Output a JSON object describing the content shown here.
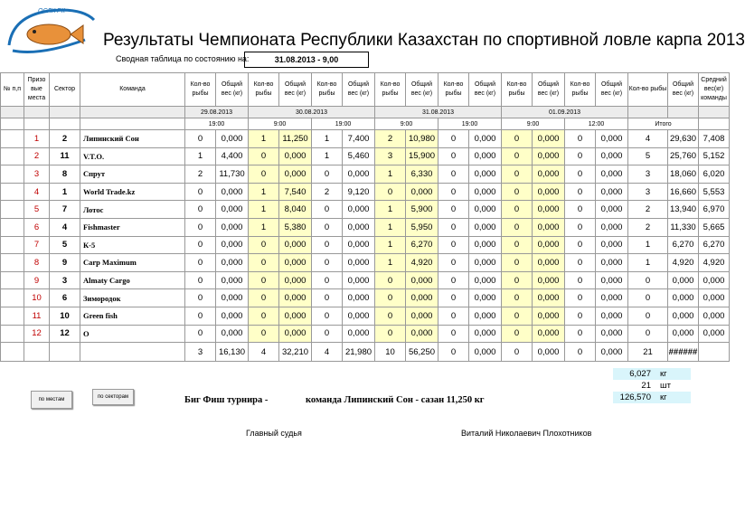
{
  "logo": {
    "text": "ОСЛК РК"
  },
  "title": "Результаты Чемпионата Республики Казахстан по спортивной ловле карпа  2013",
  "status": {
    "label": "Сводная таблица по состоянию на:",
    "value": "31.08.2013  -  9,00"
  },
  "headers": {
    "num": "№ п,п",
    "place": "Призо вые места",
    "sector": "Сектор",
    "team": "Команда",
    "count": "Кол-во рыбы",
    "weight": "Общий вес (кг)",
    "avg": "Средний вес(кг) команды"
  },
  "dates": [
    "29.08.2013",
    "30.08.2013",
    "31.08.2013",
    "01.09.2013"
  ],
  "times": [
    "19:00",
    "9:00",
    "19:00",
    "9:00",
    "19:00",
    "9:00",
    "12:00"
  ],
  "total_label": "Итого",
  "rows": [
    {
      "place": "1",
      "sector": "2",
      "team": "Липинский Сон",
      "v": [
        "0",
        "0,000",
        "1",
        "11,250",
        "1",
        "7,400",
        "2",
        "10,980",
        "0",
        "0,000",
        "0",
        "0,000",
        "0",
        "0,000"
      ],
      "total_count": "4",
      "total_weight": "29,630",
      "avg": "7,408"
    },
    {
      "place": "2",
      "sector": "11",
      "team": "V.T.O.",
      "v": [
        "1",
        "4,400",
        "0",
        "0,000",
        "1",
        "5,460",
        "3",
        "15,900",
        "0",
        "0,000",
        "0",
        "0,000",
        "0",
        "0,000"
      ],
      "total_count": "5",
      "total_weight": "25,760",
      "avg": "5,152"
    },
    {
      "place": "3",
      "sector": "8",
      "team": "Спрут",
      "v": [
        "2",
        "11,730",
        "0",
        "0,000",
        "0",
        "0,000",
        "1",
        "6,330",
        "0",
        "0,000",
        "0",
        "0,000",
        "0",
        "0,000"
      ],
      "total_count": "3",
      "total_weight": "18,060",
      "avg": "6,020"
    },
    {
      "place": "4",
      "sector": "1",
      "team": "World Trade.kz",
      "v": [
        "0",
        "0,000",
        "1",
        "7,540",
        "2",
        "9,120",
        "0",
        "0,000",
        "0",
        "0,000",
        "0",
        "0,000",
        "0",
        "0,000"
      ],
      "total_count": "3",
      "total_weight": "16,660",
      "avg": "5,553"
    },
    {
      "place": "5",
      "sector": "7",
      "team": "Лотос",
      "v": [
        "0",
        "0,000",
        "1",
        "8,040",
        "0",
        "0,000",
        "1",
        "5,900",
        "0",
        "0,000",
        "0",
        "0,000",
        "0",
        "0,000"
      ],
      "total_count": "2",
      "total_weight": "13,940",
      "avg": "6,970"
    },
    {
      "place": "6",
      "sector": "4",
      "team": "Fishmaster",
      "v": [
        "0",
        "0,000",
        "1",
        "5,380",
        "0",
        "0,000",
        "1",
        "5,950",
        "0",
        "0,000",
        "0",
        "0,000",
        "0",
        "0,000"
      ],
      "total_count": "2",
      "total_weight": "11,330",
      "avg": "5,665"
    },
    {
      "place": "7",
      "sector": "5",
      "team": "К-5",
      "v": [
        "0",
        "0,000",
        "0",
        "0,000",
        "0",
        "0,000",
        "1",
        "6,270",
        "0",
        "0,000",
        "0",
        "0,000",
        "0",
        "0,000"
      ],
      "total_count": "1",
      "total_weight": "6,270",
      "avg": "6,270"
    },
    {
      "place": "8",
      "sector": "9",
      "team": "Carp Maximum",
      "v": [
        "0",
        "0,000",
        "0",
        "0,000",
        "0",
        "0,000",
        "1",
        "4,920",
        "0",
        "0,000",
        "0",
        "0,000",
        "0",
        "0,000"
      ],
      "total_count": "1",
      "total_weight": "4,920",
      "avg": "4,920"
    },
    {
      "place": "9",
      "sector": "3",
      "team": "Almaty Cargo",
      "v": [
        "0",
        "0,000",
        "0",
        "0,000",
        "0",
        "0,000",
        "0",
        "0,000",
        "0",
        "0,000",
        "0",
        "0,000",
        "0",
        "0,000"
      ],
      "total_count": "0",
      "total_weight": "0,000",
      "avg": "0,000"
    },
    {
      "place": "10",
      "sector": "6",
      "team": "Зимородок",
      "v": [
        "0",
        "0,000",
        "0",
        "0,000",
        "0",
        "0,000",
        "0",
        "0,000",
        "0",
        "0,000",
        "0",
        "0,000",
        "0",
        "0,000"
      ],
      "total_count": "0",
      "total_weight": "0,000",
      "avg": "0,000"
    },
    {
      "place": "11",
      "sector": "10",
      "team": "Green fish",
      "v": [
        "0",
        "0,000",
        "0",
        "0,000",
        "0",
        "0,000",
        "0",
        "0,000",
        "0",
        "0,000",
        "0",
        "0,000",
        "0",
        "0,000"
      ],
      "total_count": "0",
      "total_weight": "0,000",
      "avg": "0,000"
    },
    {
      "place": "12",
      "sector": "12",
      "team": "О",
      "v": [
        "0",
        "0,000",
        "0",
        "0,000",
        "0",
        "0,000",
        "0",
        "0,000",
        "0",
        "0,000",
        "0",
        "0,000",
        "0",
        "0,000"
      ],
      "total_count": "0",
      "total_weight": "0,000",
      "avg": "0,000"
    }
  ],
  "totals": {
    "v": [
      "3",
      "16,130",
      "4",
      "32,210",
      "4",
      "21,980",
      "10",
      "56,250",
      "0",
      "0,000",
      "0",
      "0,000",
      "0",
      "0,000"
    ],
    "total_count": "21",
    "total_weight": "######"
  },
  "buttons": {
    "by_place": "по местам",
    "by_sector": "по секторам"
  },
  "summary": [
    {
      "value": "6,027",
      "unit": "кг"
    },
    {
      "value": "21",
      "unit": "шт"
    },
    {
      "value": "126,570",
      "unit": "кг"
    }
  ],
  "bigfish": {
    "label": "Биг Фиш турнира -",
    "text": "команда Липинский Сон - сазан 11,250 кг"
  },
  "judge": {
    "label": "Главный судья",
    "name": "Виталий Николаевич Плохотников"
  }
}
